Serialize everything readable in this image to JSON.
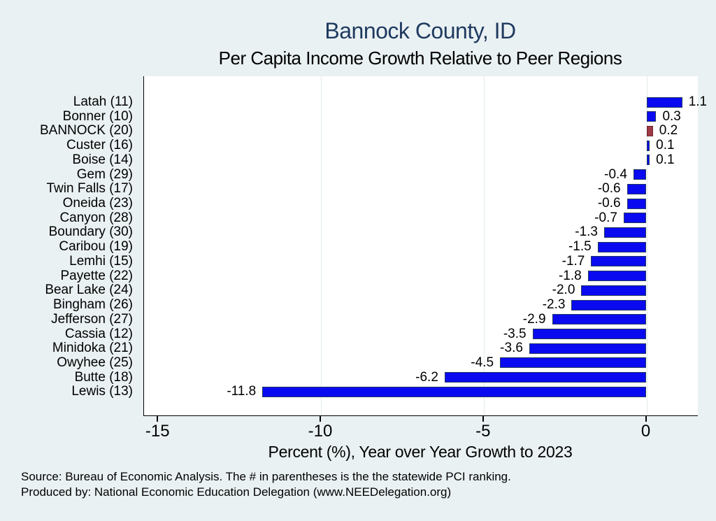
{
  "chart_data": {
    "type": "bar",
    "orientation": "horizontal",
    "title": "Bannock County, ID",
    "subtitle": "Per Capita Income Growth Relative to Peer Regions",
    "xlabel": "Percent (%), Year over Year Growth to 2023",
    "xlim": [
      -15.4,
      1.6
    ],
    "xticks": [
      -15,
      -10,
      -5,
      0
    ],
    "xtick_labels": [
      "-15",
      "-10",
      "-5",
      "0"
    ],
    "gridline_ticks": [
      -10,
      -5,
      0
    ],
    "legend": "none",
    "bar_color": "#0a0af0",
    "bar_border_color": "#223a5f",
    "highlight_bar_color": "#9e3a45",
    "highlight_bar_border_color": "#6b2831",
    "rows": [
      {
        "label": "Latah (11)",
        "value": 1.1,
        "display": "1.1",
        "highlight": false
      },
      {
        "label": "Bonner (10)",
        "value": 0.3,
        "display": "0.3",
        "highlight": false
      },
      {
        "label": "BANNOCK (20)",
        "value": 0.2,
        "display": "0.2",
        "highlight": true
      },
      {
        "label": "Custer (16)",
        "value": 0.1,
        "display": "0.1",
        "highlight": false
      },
      {
        "label": "Boise (14)",
        "value": 0.1,
        "display": "0.1",
        "highlight": false
      },
      {
        "label": "Gem (29)",
        "value": -0.4,
        "display": "-0.4",
        "highlight": false
      },
      {
        "label": "Twin Falls (17)",
        "value": -0.6,
        "display": "-0.6",
        "highlight": false
      },
      {
        "label": "Oneida (23)",
        "value": -0.6,
        "display": "-0.6",
        "highlight": false
      },
      {
        "label": "Canyon (28)",
        "value": -0.7,
        "display": "-0.7",
        "highlight": false
      },
      {
        "label": "Boundary (30)",
        "value": -1.3,
        "display": "-1.3",
        "highlight": false
      },
      {
        "label": "Caribou (19)",
        "value": -1.5,
        "display": "-1.5",
        "highlight": false
      },
      {
        "label": "Lemhi (15)",
        "value": -1.7,
        "display": "-1.7",
        "highlight": false
      },
      {
        "label": "Payette (22)",
        "value": -1.8,
        "display": "-1.8",
        "highlight": false
      },
      {
        "label": "Bear Lake (24)",
        "value": -2.0,
        "display": "-2.0",
        "highlight": false
      },
      {
        "label": "Bingham (26)",
        "value": -2.3,
        "display": "-2.3",
        "highlight": false
      },
      {
        "label": "Jefferson (27)",
        "value": -2.9,
        "display": "-2.9",
        "highlight": false
      },
      {
        "label": "Cassia (12)",
        "value": -3.5,
        "display": "-3.5",
        "highlight": false
      },
      {
        "label": "Minidoka (21)",
        "value": -3.6,
        "display": "-3.6",
        "highlight": false
      },
      {
        "label": "Owyhee (25)",
        "value": -4.5,
        "display": "-4.5",
        "highlight": false
      },
      {
        "label": "Butte (18)",
        "value": -6.2,
        "display": "-6.2",
        "highlight": false
      },
      {
        "label": "Lewis (13)",
        "value": -11.8,
        "display": "-11.8",
        "highlight": false
      }
    ]
  },
  "footer": {
    "line1": "Source: Bureau of Economic Analysis. The # in parentheses is the the statewide PCI ranking.",
    "line2": "Produced by: National Economic Education Delegation (www.NEEDelegation.org)"
  },
  "colors": {
    "background": "#eaf1f3",
    "plot_background": "#ffffff",
    "title": "#1f3a5f",
    "text": "#000000",
    "gridline": "#e2eaec",
    "axis_line": "#000000"
  }
}
